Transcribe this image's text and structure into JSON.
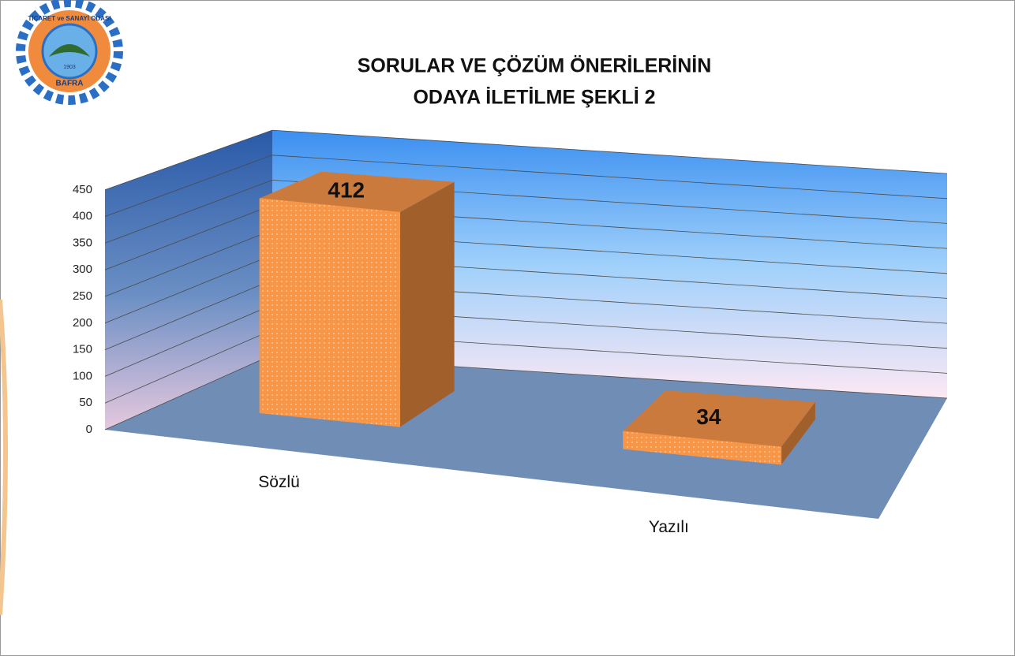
{
  "logo": {
    "name": "TİCARET ve SANAYİ ODASI",
    "city": "BAFRA",
    "year": "1903"
  },
  "chart_data": {
    "type": "bar3d",
    "title": [
      "SORULAR VE ÇÖZÜM ÖNERİLERİNİN",
      "ODAYA İLETİLME ŞEKLİ 2"
    ],
    "categories": [
      "Sözlü",
      "Yazılı"
    ],
    "values": [
      412,
      34
    ],
    "color": "#f79646",
    "ylim": [
      0,
      450
    ],
    "yticks": [
      0,
      50,
      100,
      150,
      200,
      250,
      300,
      350,
      400,
      450
    ],
    "grid": true
  }
}
